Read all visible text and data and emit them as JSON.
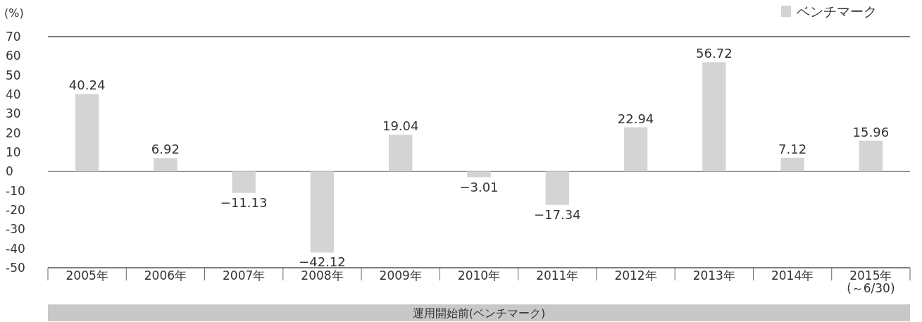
{
  "chart_data": {
    "type": "bar",
    "ylabel": "(%)",
    "categories": [
      "2005年",
      "2006年",
      "2007年",
      "2008年",
      "2009年",
      "2010年",
      "2011年",
      "2012年",
      "2013年",
      "2014年",
      "2015年\n(～6/30)"
    ],
    "series": [
      {
        "name": "ベンチマーク",
        "color": "#d4d4d4",
        "values": [
          40.24,
          6.92,
          -11.13,
          -42.12,
          19.04,
          -3.01,
          -17.34,
          22.94,
          56.72,
          7.12,
          15.96
        ]
      }
    ],
    "data_labels": true,
    "ylim": [
      -50,
      70
    ],
    "yticks": [
      -50,
      -40,
      -30,
      -20,
      -10,
      0,
      10,
      20,
      30,
      40,
      50,
      60,
      70
    ],
    "legend": "top right",
    "annotations": [
      "運用開始前(ベンチマーク)"
    ]
  }
}
